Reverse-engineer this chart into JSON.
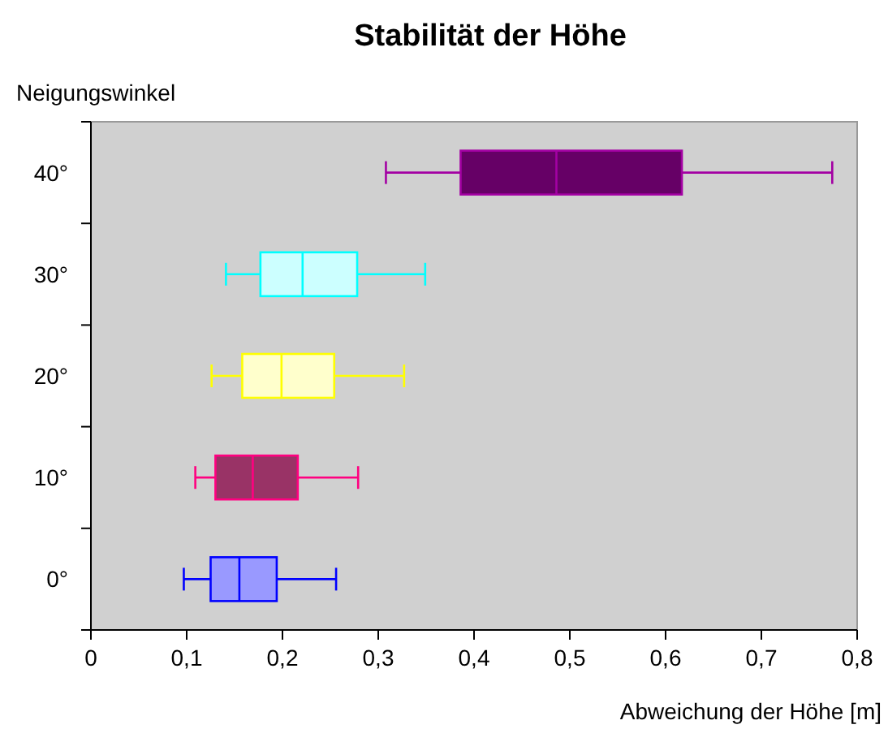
{
  "chart_data": {
    "type": "box",
    "orientation": "horizontal",
    "title": "Stabilität der Höhe",
    "xlabel": "Abweichung der Höhe [m]",
    "ylabel": "Neigungswinkel",
    "categories": [
      "40°",
      "30°",
      "20°",
      "10°",
      "0°"
    ],
    "colors": [
      "#660066",
      "#ccffff",
      "#ffffcc",
      "#993366",
      "#9999ff"
    ],
    "boxes": [
      {
        "low": 0.308,
        "q1": 0.386,
        "median": 0.486,
        "q3": 0.617,
        "high": 0.774
      },
      {
        "low": 0.141,
        "q1": 0.177,
        "median": 0.221,
        "q3": 0.278,
        "high": 0.349
      },
      {
        "low": 0.126,
        "q1": 0.158,
        "median": 0.199,
        "q3": 0.254,
        "high": 0.327
      },
      {
        "low": 0.109,
        "q1": 0.13,
        "median": 0.169,
        "q3": 0.216,
        "high": 0.279
      },
      {
        "low": 0.097,
        "q1": 0.125,
        "median": 0.155,
        "q3": 0.194,
        "high": 0.256
      }
    ],
    "xlim": [
      0,
      0.8
    ],
    "xticks": [
      0,
      {
        "value": 0.1,
        "label": "0,1"
      },
      {
        "value": 0.2,
        "label": "0,2"
      },
      {
        "value": 0.3,
        "label": "0,3"
      },
      {
        "value": 0.4,
        "label": "0,4"
      },
      {
        "value": 0.5,
        "label": "0,5"
      },
      {
        "value": 0.6,
        "label": "0,6"
      },
      {
        "value": 0.7,
        "label": "0,7"
      },
      {
        "value": 0.8,
        "label": "0,8"
      }
    ]
  }
}
